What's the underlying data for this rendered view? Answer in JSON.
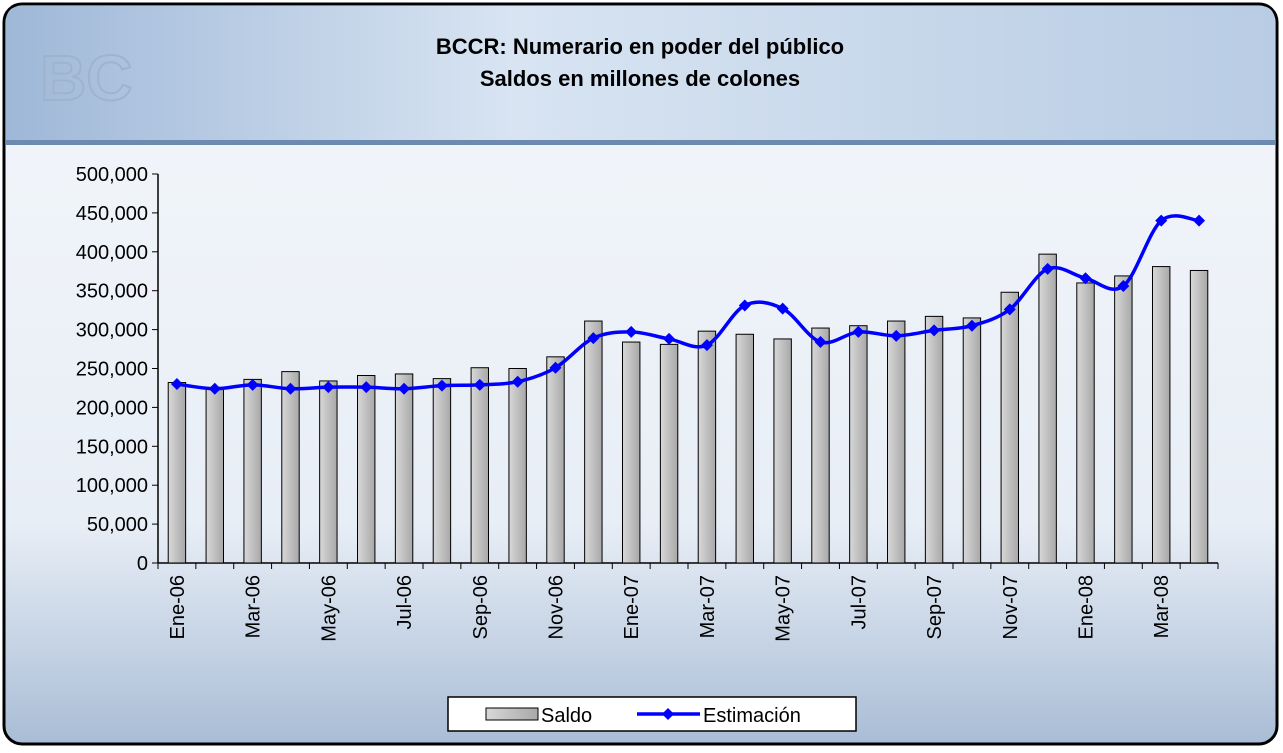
{
  "chart_data": {
    "type": "bar_line",
    "title": "BCCR: Numerario en poder del público",
    "subtitle": "Saldos en millones de colones",
    "categories": [
      "Ene-06",
      null,
      "Mar-06",
      null,
      "May-06",
      null,
      "Jul-06",
      null,
      "Sep-06",
      null,
      "Nov-06",
      null,
      "Ene-07",
      null,
      "Mar-07",
      null,
      "May-07",
      null,
      "Jul-07",
      null,
      "Sep-07",
      null,
      "Nov-07",
      null,
      "Ene-08",
      null,
      "Mar-08",
      null
    ],
    "series": [
      {
        "name": "Saldo",
        "type": "bar",
        "color": "#c0c0c0",
        "values": [
          232000,
          225000,
          236000,
          246000,
          234000,
          241000,
          243000,
          237000,
          251000,
          250000,
          265000,
          311000,
          284000,
          281000,
          298000,
          294000,
          288000,
          302000,
          305000,
          311000,
          317000,
          315000,
          348000,
          397000,
          360000,
          369000,
          381000,
          376000
        ]
      },
      {
        "name": "Estimación",
        "type": "line",
        "color": "#0000ff",
        "values": [
          230000,
          224000,
          229000,
          224000,
          226000,
          226000,
          224000,
          228000,
          229000,
          233000,
          251000,
          289000,
          297000,
          288000,
          280000,
          331000,
          327000,
          284000,
          297000,
          292000,
          299000,
          305000,
          326000,
          378000,
          366000,
          356000,
          440000,
          440000
        ]
      }
    ],
    "ylim": [
      0,
      500000
    ],
    "yticks": [
      0,
      {
        "value": 50000,
        "label": "50,000"
      },
      {
        "value": 100000,
        "label": "100,000"
      },
      {
        "value": 150000,
        "label": "150,000"
      },
      {
        "value": 200000,
        "label": "200,000"
      },
      {
        "value": 250000,
        "label": "250,000"
      },
      {
        "value": 300000,
        "label": "300,000"
      },
      {
        "value": 350000,
        "label": "350,000"
      },
      {
        "value": 400000,
        "label": "400,000"
      },
      {
        "value": 450000,
        "label": "450,000"
      },
      {
        "value": 500000,
        "label": "500,000"
      }
    ],
    "grid": false
  }
}
